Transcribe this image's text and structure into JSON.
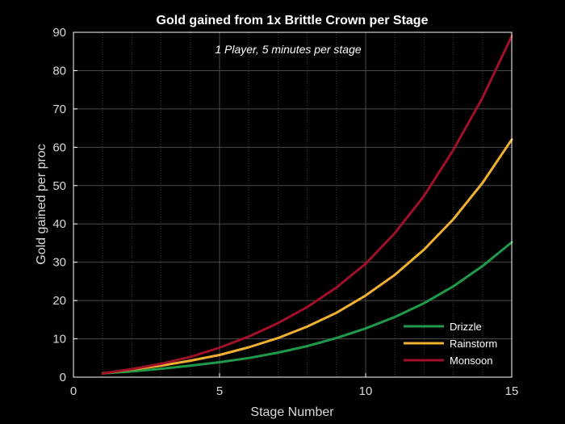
{
  "chart_data": {
    "type": "line",
    "title": "Gold gained from 1x Brittle Crown per Stage",
    "subtitle": "1 Player, 5 minutes per stage",
    "xlabel": "Stage Number",
    "ylabel": "Gold gained per proc",
    "xlim": [
      0,
      15
    ],
    "ylim": [
      0,
      90
    ],
    "x_ticks": [
      0,
      5,
      10,
      15
    ],
    "y_ticks": [
      0,
      10,
      20,
      30,
      40,
      50,
      60,
      70,
      80,
      90
    ],
    "x_minor_ticks": [
      1,
      2,
      3,
      4,
      6,
      7,
      8,
      9,
      11,
      12,
      13,
      14
    ],
    "grid": true,
    "background": "#000000",
    "legend_position": "lower-right",
    "x": [
      1,
      2,
      3,
      4,
      5,
      6,
      7,
      8,
      9,
      10,
      11,
      12,
      13,
      14,
      15
    ],
    "series": [
      {
        "name": "Drizzle",
        "color": "#1e9a4a",
        "values": [
          1.0,
          1.5,
          2.2,
          3.0,
          3.9,
          5.0,
          6.4,
          8.1,
          10.2,
          12.7,
          15.7,
          19.3,
          23.7,
          29.0,
          35.2
        ]
      },
      {
        "name": "Rainstorm",
        "color": "#f0b030",
        "values": [
          1.0,
          2.0,
          3.0,
          4.3,
          5.8,
          7.8,
          10.2,
          13.2,
          16.8,
          21.3,
          26.7,
          33.3,
          41.2,
          50.7,
          62.0
        ]
      },
      {
        "name": "Monsoon",
        "color": "#a01028",
        "values": [
          1.0,
          2.1,
          3.5,
          5.3,
          7.7,
          10.6,
          14.1,
          18.3,
          23.4,
          29.6,
          37.6,
          47.3,
          59.3,
          72.9,
          89.0
        ]
      }
    ]
  }
}
